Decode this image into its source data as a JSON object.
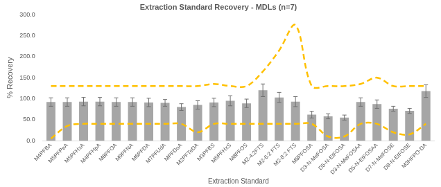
{
  "chart_data": {
    "type": "bar",
    "title": "Extraction Standard Recovery - MDLs (n=7)",
    "x_label": "Extraction Standard",
    "y_label": "% Recovery",
    "categories": [
      "M4PFBA",
      "M5PFPeA",
      "M5PFHxA",
      "M4PFHpA",
      "M8PFOA",
      "M9PFNA",
      "M6PFDA",
      "M7PFUdA",
      "MPFDoA",
      "M2PFTeDA",
      "M3PFBS",
      "M5PFHxS",
      "M8PFOS",
      "M2-4:2FTS",
      "M2-6:2 FTS",
      "M2-8:2 FTS",
      "M8PFOSA",
      "D3-N-MeFOSA",
      "D5-N-EtFOSA",
      "D3-N-MeFOSAA",
      "D5-N-EtFOSAA",
      "D7-N-MeFOSE",
      "D9-N-EtFOSE",
      "M3HFPO-DA"
    ],
    "series": [
      {
        "type": "bar",
        "color": "#a6a6a6",
        "values": [
          92,
          92,
          93,
          93,
          92,
          92,
          91,
          90,
          80,
          85,
          91,
          95,
          89,
          120,
          103,
          93,
          62,
          58,
          55,
          92,
          87,
          76,
          71,
          118
        ],
        "errors": [
          10,
          10,
          10,
          10,
          10,
          10,
          10,
          8,
          8,
          10,
          10,
          12,
          10,
          15,
          12,
          12,
          8,
          6,
          6,
          10,
          10,
          6,
          6,
          15
        ]
      },
      {
        "type": "line",
        "color": "#ffc000",
        "line_style": "dashed",
        "values": [
          130,
          130,
          130,
          130,
          130,
          130,
          130,
          130,
          130,
          130,
          135,
          130,
          130,
          165,
          215,
          275,
          130,
          130,
          130,
          135,
          150,
          130,
          130,
          130
        ]
      },
      {
        "type": "line",
        "color": "#ffc000",
        "line_style": "dashed",
        "values": [
          5,
          35,
          40,
          40,
          40,
          40,
          40,
          40,
          40,
          20,
          40,
          40,
          40,
          40,
          40,
          40,
          40,
          10,
          10,
          40,
          40,
          20,
          15,
          40
        ]
      }
    ],
    "ylim": [
      0,
      300
    ],
    "yticks": [
      {
        "value": 0,
        "label": "0.0"
      },
      {
        "value": 50,
        "label": "50.0"
      },
      {
        "value": 100,
        "label": "100.0"
      },
      {
        "value": 150,
        "label": "150.0"
      },
      {
        "value": 200,
        "label": "200.0"
      },
      {
        "value": 250,
        "label": "250.0"
      },
      {
        "value": 300,
        "label": "300.0"
      }
    ],
    "grid": false
  }
}
